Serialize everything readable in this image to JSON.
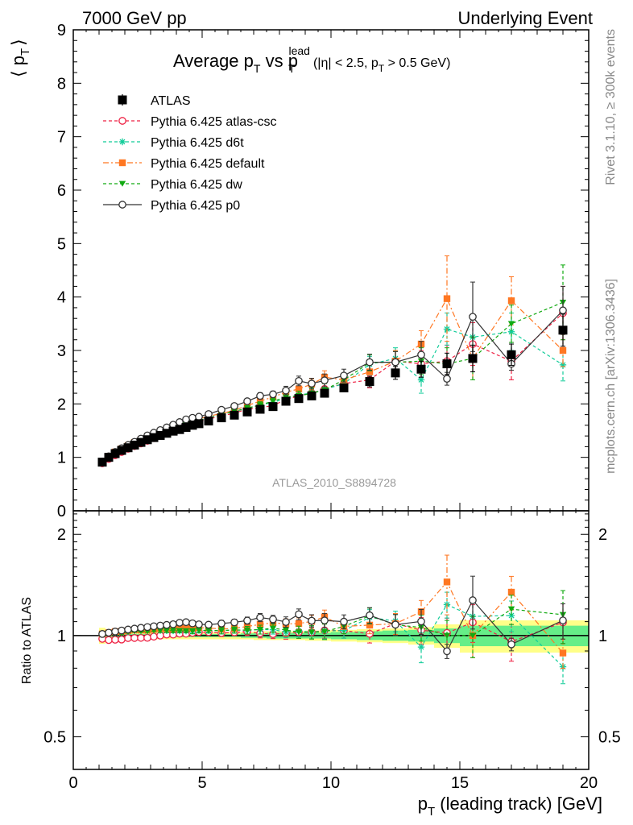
{
  "header": {
    "left": "7000 GeV pp",
    "right": "Underlying Event"
  },
  "side": {
    "rivet": "Rivet 3.1.10, ≥ 300k events",
    "mcplots": "mcplots.cern.ch [arXiv:1306.3436]"
  },
  "title": {
    "main": "Average p",
    "sub_T1": "T",
    "vs": " vs p",
    "sub_T2": "T",
    "sup_lead": "lead",
    "cuts_a": "(|η| < 2.5, p",
    "cuts_sub": "T",
    "cuts_b": " > 0.5 GeV)"
  },
  "watermark": "ATLAS_2010_S8894728",
  "axes": {
    "ylabel_top": "⟨ p",
    "ylabel_top_sub": "T",
    "ylabel_top_close": "⟩",
    "ylabel_bottom": "Ratio to ATLAS",
    "xlabel": "p",
    "xlabel_sub": "T",
    "xlabel_rest": " (leading track) [GeV]"
  },
  "legend": [
    {
      "label": "ATLAS",
      "color": "#000000",
      "marker": "square-filled",
      "dash": "solid"
    },
    {
      "label": "Pythia 6.425 atlas-csc",
      "color": "#ee2244",
      "marker": "circle-open",
      "dash": "dashed"
    },
    {
      "label": "Pythia 6.425 d6t",
      "color": "#11cc99",
      "marker": "star",
      "dash": "dashed"
    },
    {
      "label": "Pythia 6.425 default",
      "color": "#ff7722",
      "marker": "square-filled",
      "dash": "dashdot"
    },
    {
      "label": "Pythia 6.425 dw",
      "color": "#11aa11",
      "marker": "triangle-down",
      "dash": "dashed"
    },
    {
      "label": "Pythia 6.425 p0",
      "color": "#333333",
      "marker": "circle-open",
      "dash": "solid"
    }
  ],
  "chart_data": {
    "type": "scatter",
    "title": "Average pT vs pT lead (|η| < 2.5, pT > 0.5 GeV)",
    "xlabel": "pT (leading track) [GeV]",
    "ylabel": "⟨ pT ⟩",
    "xlim": [
      0,
      20
    ],
    "ylim": [
      0,
      9
    ],
    "ratio_ylim": [
      0.4,
      2.35
    ],
    "x_ticks": [
      0,
      5,
      10,
      15,
      20
    ],
    "y_ticks": [
      1,
      2,
      3,
      4,
      5,
      6,
      7,
      8,
      9
    ],
    "y_ticks_extra": [
      0
    ],
    "ratio_ticks": [
      0.5,
      1,
      2
    ],
    "x": [
      1.125,
      1.375,
      1.625,
      1.875,
      2.125,
      2.375,
      2.625,
      2.875,
      3.125,
      3.375,
      3.625,
      3.875,
      4.125,
      4.375,
      4.625,
      4.875,
      5.25,
      5.75,
      6.25,
      6.75,
      7.25,
      7.75,
      8.25,
      8.75,
      9.25,
      9.75,
      10.5,
      11.5,
      12.5,
      13.5,
      14.5,
      15.5,
      17.0,
      19.0
    ],
    "series": [
      {
        "name": "ATLAS",
        "values": [
          0.91,
          1.0,
          1.07,
          1.13,
          1.18,
          1.23,
          1.28,
          1.33,
          1.37,
          1.41,
          1.45,
          1.49,
          1.52,
          1.56,
          1.6,
          1.63,
          1.68,
          1.74,
          1.79,
          1.85,
          1.9,
          1.95,
          2.05,
          2.1,
          2.15,
          2.2,
          2.3,
          2.42,
          2.58,
          2.65,
          2.75,
          2.85,
          2.92,
          3.38
        ],
        "err": [
          0.01,
          0.01,
          0.01,
          0.01,
          0.01,
          0.01,
          0.01,
          0.01,
          0.01,
          0.01,
          0.01,
          0.01,
          0.01,
          0.02,
          0.02,
          0.02,
          0.02,
          0.02,
          0.02,
          0.03,
          0.03,
          0.04,
          0.04,
          0.05,
          0.05,
          0.06,
          0.07,
          0.1,
          0.12,
          0.15,
          0.2,
          0.25,
          0.2,
          0.3
        ]
      },
      {
        "name": "Pythia 6.425 atlas-csc",
        "values": [
          0.89,
          0.97,
          1.04,
          1.1,
          1.16,
          1.21,
          1.26,
          1.31,
          1.36,
          1.41,
          1.46,
          1.5,
          1.54,
          1.58,
          1.63,
          1.67,
          1.72,
          1.77,
          1.83,
          1.9,
          1.93,
          1.97,
          2.08,
          2.15,
          2.2,
          2.28,
          2.38,
          2.45,
          2.8,
          2.75,
          2.8,
          3.12,
          2.8,
          3.7
        ],
        "err": [
          0.01,
          0.01,
          0.01,
          0.01,
          0.01,
          0.01,
          0.01,
          0.01,
          0.01,
          0.02,
          0.02,
          0.02,
          0.02,
          0.02,
          0.03,
          0.03,
          0.03,
          0.04,
          0.04,
          0.05,
          0.06,
          0.06,
          0.08,
          0.09,
          0.1,
          0.12,
          0.12,
          0.15,
          0.2,
          0.25,
          0.3,
          0.4,
          0.35,
          0.5
        ]
      },
      {
        "name": "Pythia 6.425 d6t",
        "values": [
          0.92,
          1.02,
          1.09,
          1.15,
          1.21,
          1.27,
          1.32,
          1.37,
          1.42,
          1.46,
          1.5,
          1.54,
          1.57,
          1.61,
          1.65,
          1.69,
          1.74,
          1.8,
          1.86,
          1.92,
          1.98,
          2.03,
          2.1,
          2.17,
          2.2,
          2.27,
          2.38,
          2.74,
          2.85,
          2.45,
          3.4,
          3.25,
          3.35,
          2.73
        ],
        "err": [
          0.01,
          0.01,
          0.01,
          0.01,
          0.01,
          0.01,
          0.01,
          0.01,
          0.01,
          0.02,
          0.02,
          0.02,
          0.02,
          0.02,
          0.03,
          0.03,
          0.03,
          0.04,
          0.04,
          0.05,
          0.06,
          0.06,
          0.08,
          0.09,
          0.1,
          0.12,
          0.12,
          0.15,
          0.2,
          0.25,
          0.3,
          0.4,
          0.35,
          0.3
        ]
      },
      {
        "name": "Pythia 6.425 default",
        "values": [
          0.92,
          1.02,
          1.1,
          1.16,
          1.22,
          1.28,
          1.33,
          1.38,
          1.43,
          1.48,
          1.52,
          1.56,
          1.6,
          1.64,
          1.68,
          1.72,
          1.77,
          1.82,
          1.88,
          1.97,
          2.05,
          2.13,
          2.22,
          2.28,
          2.37,
          2.5,
          2.45,
          2.6,
          2.8,
          3.12,
          3.97,
          2.85,
          3.93,
          3.0
        ],
        "err": [
          0.01,
          0.01,
          0.01,
          0.01,
          0.01,
          0.01,
          0.01,
          0.01,
          0.01,
          0.02,
          0.02,
          0.02,
          0.02,
          0.02,
          0.03,
          0.03,
          0.03,
          0.04,
          0.04,
          0.05,
          0.06,
          0.06,
          0.08,
          0.09,
          0.1,
          0.12,
          0.12,
          0.15,
          0.2,
          0.25,
          0.8,
          0.4,
          0.45,
          0.3
        ]
      },
      {
        "name": "Pythia 6.425 dw",
        "values": [
          0.92,
          1.02,
          1.09,
          1.15,
          1.21,
          1.27,
          1.32,
          1.37,
          1.42,
          1.46,
          1.5,
          1.54,
          1.57,
          1.61,
          1.65,
          1.69,
          1.74,
          1.8,
          1.86,
          1.92,
          1.98,
          2.05,
          2.13,
          2.15,
          2.2,
          2.26,
          2.45,
          2.77,
          2.78,
          2.8,
          2.75,
          2.85,
          3.5,
          3.9
        ],
        "err": [
          0.01,
          0.01,
          0.01,
          0.01,
          0.01,
          0.01,
          0.01,
          0.01,
          0.01,
          0.02,
          0.02,
          0.02,
          0.02,
          0.02,
          0.03,
          0.03,
          0.03,
          0.04,
          0.04,
          0.05,
          0.06,
          0.06,
          0.08,
          0.09,
          0.1,
          0.12,
          0.12,
          0.15,
          0.2,
          0.25,
          0.3,
          0.4,
          0.35,
          0.7
        ]
      },
      {
        "name": "Pythia 6.425 p0",
        "values": [
          0.92,
          1.02,
          1.1,
          1.17,
          1.23,
          1.29,
          1.35,
          1.41,
          1.46,
          1.51,
          1.56,
          1.61,
          1.66,
          1.71,
          1.74,
          1.76,
          1.81,
          1.89,
          1.96,
          2.05,
          2.15,
          2.18,
          2.25,
          2.43,
          2.38,
          2.44,
          2.53,
          2.78,
          2.78,
          2.92,
          2.47,
          3.63,
          2.75,
          3.75
        ],
        "err": [
          0.01,
          0.01,
          0.01,
          0.01,
          0.01,
          0.01,
          0.01,
          0.01,
          0.01,
          0.02,
          0.02,
          0.02,
          0.02,
          0.02,
          0.03,
          0.03,
          0.03,
          0.04,
          0.04,
          0.05,
          0.06,
          0.06,
          0.08,
          0.09,
          0.1,
          0.12,
          0.12,
          0.15,
          0.2,
          0.25,
          0.12,
          0.65,
          0.12,
          0.45
        ]
      }
    ],
    "bands": {
      "x_edges": [
        1.0,
        1.25,
        1.5,
        1.75,
        2.0,
        2.25,
        2.5,
        2.75,
        3.0,
        3.25,
        3.5,
        3.75,
        4.0,
        4.25,
        4.5,
        4.75,
        5.0,
        5.5,
        6.0,
        6.5,
        7.0,
        7.5,
        8.0,
        8.5,
        9.0,
        9.5,
        10.0,
        11.0,
        12.0,
        13.0,
        14.0,
        15.0,
        16.0,
        18.0,
        20.0
      ],
      "stat": [
        0.01,
        0.01,
        0.01,
        0.01,
        0.01,
        0.01,
        0.01,
        0.01,
        0.01,
        0.01,
        0.01,
        0.01,
        0.01,
        0.01,
        0.01,
        0.01,
        0.01,
        0.01,
        0.01,
        0.015,
        0.015,
        0.02,
        0.02,
        0.02,
        0.02,
        0.02,
        0.025,
        0.03,
        0.035,
        0.04,
        0.05,
        0.07,
        0.07,
        0.07
      ],
      "total": [
        0.055,
        0.03,
        0.025,
        0.025,
        0.025,
        0.025,
        0.025,
        0.025,
        0.025,
        0.025,
        0.025,
        0.025,
        0.025,
        0.025,
        0.025,
        0.025,
        0.025,
        0.025,
        0.025,
        0.025,
        0.03,
        0.03,
        0.03,
        0.03,
        0.035,
        0.035,
        0.04,
        0.045,
        0.05,
        0.06,
        0.08,
        0.11,
        0.11,
        0.11
      ]
    }
  }
}
